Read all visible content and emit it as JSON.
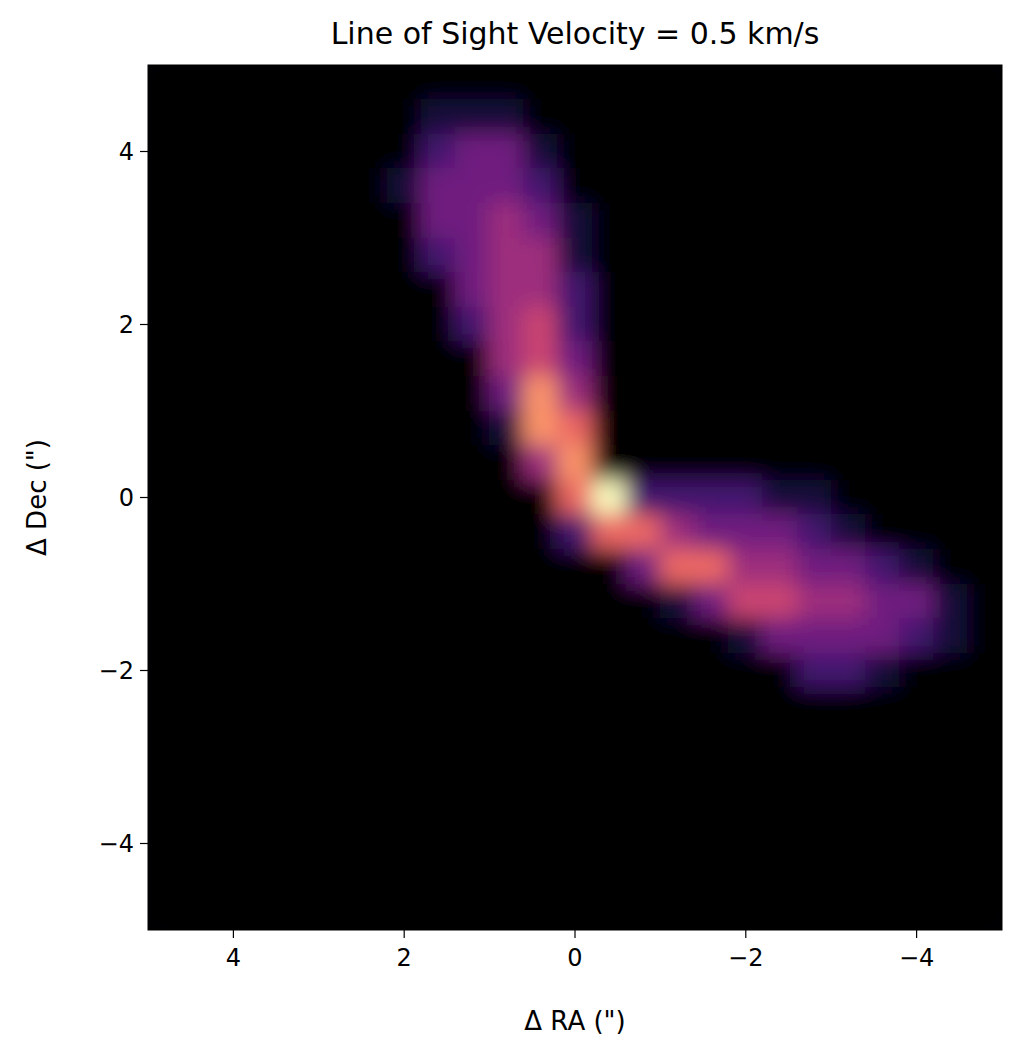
{
  "chart_data": {
    "type": "heatmap",
    "title": "Line of Sight Velocity = 0.5 km/s",
    "x_label": "Δ RA (\")",
    "y_label": "Δ Dec (\")",
    "xlim": [
      5,
      -5
    ],
    "ylim": [
      -5,
      5
    ],
    "xticks": [
      4,
      2,
      0,
      {
        "value": -2,
        "label": "−2"
      },
      {
        "value": -4,
        "label": "−4"
      }
    ],
    "yticks": [
      {
        "value": -4,
        "label": "−4"
      },
      {
        "value": -2,
        "label": "−2"
      },
      0,
      2,
      4
    ],
    "x": [
      4.8,
      4.4,
      4.0,
      3.6,
      3.2,
      2.8,
      2.4,
      2.0,
      1.6,
      1.2,
      0.8,
      0.4,
      0,
      -0.4,
      -0.8,
      -1.2,
      -1.6,
      -2.0,
      -2.4,
      -2.8,
      -3.2,
      -3.6,
      -4.0,
      -4.4,
      -4.8
    ],
    "y": [
      4.8,
      4.4,
      4.0,
      3.6,
      3.2,
      2.8,
      2.4,
      2.0,
      1.6,
      1.2,
      0.8,
      0.4,
      0,
      -0.4,
      -0.8,
      -1.2,
      -1.6,
      -2.0,
      -2.4,
      -2.8,
      -3.2,
      -3.6,
      -4.0,
      -4.4,
      -4.8
    ],
    "values": [
      [
        0,
        0,
        0,
        0,
        0,
        0,
        0,
        0,
        0,
        0,
        0,
        0,
        0,
        0,
        0,
        0,
        0,
        0,
        0,
        0,
        0,
        0,
        0,
        0,
        0
      ],
      [
        0,
        0,
        0,
        0,
        0,
        0,
        0,
        0,
        1,
        1,
        1,
        0,
        0,
        0,
        0,
        0,
        0,
        0,
        0,
        0,
        0,
        0,
        0,
        0,
        0
      ],
      [
        0,
        0,
        0,
        0,
        0,
        0,
        0,
        0,
        2,
        3,
        3,
        1,
        0,
        0,
        0,
        0,
        0,
        0,
        0,
        0,
        0,
        0,
        0,
        0,
        0
      ],
      [
        0,
        0,
        0,
        0,
        0,
        0,
        0,
        1,
        3,
        3,
        3,
        2,
        0,
        0,
        0,
        0,
        0,
        0,
        0,
        0,
        0,
        0,
        0,
        0,
        0
      ],
      [
        0,
        0,
        0,
        0,
        0,
        0,
        0,
        0,
        3,
        3,
        4,
        3,
        1,
        0,
        0,
        0,
        0,
        0,
        0,
        0,
        0,
        0,
        0,
        0,
        0
      ],
      [
        0,
        0,
        0,
        0,
        0,
        0,
        0,
        0,
        2,
        3,
        4,
        4,
        1,
        0,
        0,
        0,
        0,
        0,
        0,
        0,
        0,
        0,
        0,
        0,
        0
      ],
      [
        0,
        0,
        0,
        0,
        0,
        0,
        0,
        0,
        0,
        3,
        4,
        4,
        2,
        0,
        0,
        0,
        0,
        0,
        0,
        0,
        0,
        0,
        0,
        0,
        0
      ],
      [
        0,
        0,
        0,
        0,
        0,
        0,
        0,
        0,
        0,
        2,
        4,
        5,
        2,
        0,
        0,
        0,
        0,
        0,
        0,
        0,
        0,
        0,
        0,
        0,
        0
      ],
      [
        0,
        0,
        0,
        0,
        0,
        0,
        0,
        0,
        0,
        0,
        4,
        5,
        3,
        0,
        0,
        0,
        0,
        0,
        0,
        0,
        0,
        0,
        0,
        0,
        0
      ],
      [
        0,
        0,
        0,
        0,
        0,
        0,
        0,
        0,
        0,
        0,
        3,
        7,
        4,
        0,
        0,
        0,
        0,
        0,
        0,
        0,
        0,
        0,
        0,
        0,
        0
      ],
      [
        0,
        0,
        0,
        0,
        0,
        0,
        0,
        0,
        0,
        0,
        1,
        7,
        6,
        0,
        0,
        0,
        0,
        0,
        0,
        0,
        0,
        0,
        0,
        0,
        0
      ],
      [
        0,
        0,
        0,
        0,
        0,
        0,
        0,
        0,
        0,
        0,
        0,
        4,
        7,
        0,
        0,
        0,
        0,
        0,
        0,
        0,
        0,
        0,
        0,
        0,
        0
      ],
      [
        0,
        0,
        0,
        0,
        0,
        0,
        0,
        0,
        0,
        0,
        0,
        0,
        6,
        9,
        2,
        2,
        2,
        2,
        1,
        1,
        0,
        0,
        0,
        0,
        0
      ],
      [
        0,
        0,
        0,
        0,
        0,
        0,
        0,
        0,
        0,
        0,
        0,
        0,
        2,
        6,
        6,
        4,
        3,
        3,
        3,
        2,
        1,
        0,
        0,
        0,
        0
      ],
      [
        0,
        0,
        0,
        0,
        0,
        0,
        0,
        0,
        0,
        0,
        0,
        0,
        0,
        0,
        3,
        6,
        6,
        4,
        4,
        3,
        3,
        2,
        1,
        0,
        0
      ],
      [
        0,
        0,
        0,
        0,
        0,
        0,
        0,
        0,
        0,
        0,
        0,
        0,
        0,
        0,
        0,
        1,
        3,
        5,
        5,
        4,
        4,
        3,
        3,
        1,
        0
      ],
      [
        0,
        0,
        0,
        0,
        0,
        0,
        0,
        0,
        0,
        0,
        0,
        0,
        0,
        0,
        0,
        0,
        0,
        1,
        3,
        3,
        3,
        3,
        2,
        1,
        0
      ],
      [
        0,
        0,
        0,
        0,
        0,
        0,
        0,
        0,
        0,
        0,
        0,
        0,
        0,
        0,
        0,
        0,
        0,
        0,
        0,
        2,
        2,
        1,
        0,
        0,
        0
      ],
      [
        0,
        0,
        0,
        0,
        0,
        0,
        0,
        0,
        0,
        0,
        0,
        0,
        0,
        0,
        0,
        0,
        0,
        0,
        0,
        0,
        0,
        0,
        0,
        0,
        0
      ],
      [
        0,
        0,
        0,
        0,
        0,
        0,
        0,
        0,
        0,
        0,
        0,
        0,
        0,
        0,
        0,
        0,
        0,
        0,
        0,
        0,
        0,
        0,
        0,
        0,
        0
      ],
      [
        0,
        0,
        0,
        0,
        0,
        0,
        0,
        0,
        0,
        0,
        0,
        0,
        0,
        0,
        0,
        0,
        0,
        0,
        0,
        0,
        0,
        0,
        0,
        0,
        0
      ],
      [
        0,
        0,
        0,
        0,
        0,
        0,
        0,
        0,
        0,
        0,
        0,
        0,
        0,
        0,
        0,
        0,
        0,
        0,
        0,
        0,
        0,
        0,
        0,
        0,
        0
      ],
      [
        0,
        0,
        0,
        0,
        0,
        0,
        0,
        0,
        0,
        0,
        0,
        0,
        0,
        0,
        0,
        0,
        0,
        0,
        0,
        0,
        0,
        0,
        0,
        0,
        0
      ],
      [
        0,
        0,
        0,
        0,
        0,
        0,
        0,
        0,
        0,
        0,
        0,
        0,
        0,
        0,
        0,
        0,
        0,
        0,
        0,
        0,
        0,
        0,
        0,
        0,
        0
      ],
      [
        0,
        0,
        0,
        0,
        0,
        0,
        0,
        0,
        0,
        0,
        0,
        0,
        0,
        0,
        0,
        0,
        0,
        0,
        0,
        0,
        0,
        0,
        0,
        0,
        0
      ]
    ]
  }
}
